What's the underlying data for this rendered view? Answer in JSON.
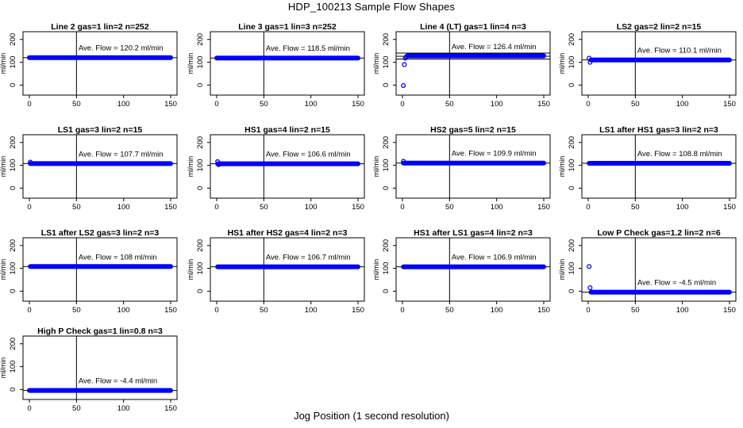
{
  "title": "HDP_100213  Sample Flow Shapes",
  "x_axis_label": "Jog Position (1 second resolution)",
  "y_axis_label": "ml/min",
  "marker_color": "#0000ff",
  "line_color": "#000000",
  "chart_data": [
    {
      "type": "scatter",
      "title": "Line 2 gas=1 lin=2 n=252",
      "xlim": [
        0,
        150
      ],
      "ylim": [
        -30,
        220
      ],
      "yticks": [
        0,
        100,
        200
      ],
      "xticks": [
        0,
        50,
        100,
        150
      ],
      "ave_label": "Ave. Flow =  120.2  ml/min",
      "ave": 120.2,
      "reference_band": [],
      "vline_x": 50,
      "x": [
        0,
        150
      ],
      "y": [
        120.2,
        120.2
      ],
      "extra_points": []
    },
    {
      "type": "scatter",
      "title": "Line 3 gas=1 lin=3 n=252",
      "xlim": [
        0,
        150
      ],
      "ylim": [
        -30,
        220
      ],
      "yticks": [
        0,
        100,
        200
      ],
      "xticks": [
        0,
        50,
        100,
        150
      ],
      "ave_label": "Ave. Flow =  118.5  ml/min",
      "ave": 118.5,
      "reference_band": [],
      "vline_x": 50,
      "x": [
        0,
        150
      ],
      "y": [
        118.5,
        118.5
      ],
      "extra_points": []
    },
    {
      "type": "scatter",
      "title": "Line 4 (LT) gas=1 lin=4 n=3",
      "xlim": [
        0,
        150
      ],
      "ylim": [
        -30,
        220
      ],
      "yticks": [
        0,
        100,
        200
      ],
      "xticks": [
        0,
        50,
        100,
        150
      ],
      "ave_label": "Ave. Flow =  126.4  ml/min",
      "ave": 126.4,
      "reference_band": [
        114,
        140
      ],
      "vline_x": 50,
      "x": [
        5,
        150
      ],
      "y": [
        128,
        128
      ],
      "extra_points": [
        [
          1,
          -2
        ],
        [
          2,
          90
        ],
        [
          3,
          118
        ],
        [
          4,
          124
        ]
      ]
    },
    {
      "type": "scatter",
      "title": "LS2 gas=2 lin=2 n=15",
      "xlim": [
        0,
        150
      ],
      "ylim": [
        -30,
        220
      ],
      "yticks": [
        0,
        100,
        200
      ],
      "xticks": [
        0,
        50,
        100,
        150
      ],
      "ave_label": "Ave. Flow =  110.1  ml/min",
      "ave": 110.1,
      "reference_band": [],
      "vline_x": 50,
      "x": [
        3,
        150
      ],
      "y": [
        110.1,
        110.1
      ],
      "extra_points": [
        [
          1,
          118
        ],
        [
          2,
          100
        ]
      ]
    },
    {
      "type": "scatter",
      "title": "LS1 gas=3 lin=2 n=15",
      "xlim": [
        0,
        150
      ],
      "ylim": [
        -30,
        220
      ],
      "yticks": [
        0,
        100,
        200
      ],
      "xticks": [
        0,
        50,
        100,
        150
      ],
      "ave_label": "Ave. Flow =  107.7  ml/min",
      "ave": 107.7,
      "reference_band": [],
      "vline_x": 50,
      "x": [
        1,
        150
      ],
      "y": [
        107.7,
        107.7
      ],
      "extra_points": [
        [
          1,
          114
        ]
      ]
    },
    {
      "type": "scatter",
      "title": "HS1 gas=4 lin=2 n=15",
      "xlim": [
        0,
        150
      ],
      "ylim": [
        -30,
        220
      ],
      "yticks": [
        0,
        100,
        200
      ],
      "xticks": [
        0,
        50,
        100,
        150
      ],
      "ave_label": "Ave. Flow =  106.6  ml/min",
      "ave": 106.6,
      "reference_band": [],
      "vline_x": 50,
      "x": [
        1,
        150
      ],
      "y": [
        106.6,
        106.6
      ],
      "extra_points": [
        [
          1,
          116
        ],
        [
          2,
          103
        ]
      ]
    },
    {
      "type": "scatter",
      "title": "HS2 gas=5 lin=2 n=15",
      "xlim": [
        0,
        150
      ],
      "ylim": [
        -30,
        220
      ],
      "yticks": [
        0,
        100,
        200
      ],
      "xticks": [
        0,
        50,
        100,
        150
      ],
      "ave_label": "Ave. Flow =  109.9  ml/min",
      "ave": 109.9,
      "reference_band": [],
      "vline_x": 50,
      "x": [
        1,
        150
      ],
      "y": [
        109.9,
        109.9
      ],
      "extra_points": [
        [
          1,
          118
        ]
      ]
    },
    {
      "type": "scatter",
      "title": "LS1 after HS1 gas=3 lin=2 n=3",
      "xlim": [
        0,
        150
      ],
      "ylim": [
        -30,
        220
      ],
      "yticks": [
        0,
        100,
        200
      ],
      "xticks": [
        0,
        50,
        100,
        150
      ],
      "ave_label": "Ave. Flow =  108.8  ml/min",
      "ave": 108.8,
      "reference_band": [],
      "vline_x": 50,
      "x": [
        1,
        150
      ],
      "y": [
        108.8,
        108.8
      ],
      "extra_points": []
    },
    {
      "type": "scatter",
      "title": "LS1 after LS2 gas=3 lin=2 n=3",
      "xlim": [
        0,
        150
      ],
      "ylim": [
        -30,
        220
      ],
      "yticks": [
        0,
        100,
        200
      ],
      "xticks": [
        0,
        50,
        100,
        150
      ],
      "ave_label": "Ave. Flow =  108   ml/min",
      "ave": 108,
      "reference_band": [],
      "vline_x": 50,
      "x": [
        1,
        150
      ],
      "y": [
        108,
        108
      ],
      "extra_points": []
    },
    {
      "type": "scatter",
      "title": "HS1 after HS2 gas=4 lin=2 n=3",
      "xlim": [
        0,
        150
      ],
      "ylim": [
        -30,
        220
      ],
      "yticks": [
        0,
        100,
        200
      ],
      "xticks": [
        0,
        50,
        100,
        150
      ],
      "ave_label": "Ave. Flow =  106.7  ml/min",
      "ave": 106.7,
      "reference_band": [],
      "vline_x": 50,
      "x": [
        1,
        150
      ],
      "y": [
        106.7,
        106.7
      ],
      "extra_points": []
    },
    {
      "type": "scatter",
      "title": "HS1 after LS1 gas=4 lin=2 n=3",
      "xlim": [
        0,
        150
      ],
      "ylim": [
        -30,
        220
      ],
      "yticks": [
        0,
        100,
        200
      ],
      "xticks": [
        0,
        50,
        100,
        150
      ],
      "ave_label": "Ave. Flow =  106.9  ml/min",
      "ave": 106.9,
      "reference_band": [],
      "vline_x": 50,
      "x": [
        1,
        150
      ],
      "y": [
        106.9,
        106.9
      ],
      "extra_points": []
    },
    {
      "type": "scatter",
      "title": "Low P Check gas=1.2 lin=2 n=6",
      "xlim": [
        0,
        150
      ],
      "ylim": [
        -30,
        220
      ],
      "yticks": [
        0,
        100,
        200
      ],
      "xticks": [
        0,
        50,
        100,
        150
      ],
      "ave_label": "Ave. Flow =  -4.5  ml/min",
      "ave": -4.5,
      "reference_band": [],
      "vline_x": 50,
      "x": [
        3,
        150
      ],
      "y": [
        -4.5,
        -4.5
      ],
      "extra_points": [
        [
          1,
          108
        ],
        [
          2,
          15
        ]
      ]
    },
    {
      "type": "scatter",
      "title": "High P Check gas=1 lin=0.8 n=3",
      "xlim": [
        0,
        150
      ],
      "ylim": [
        -30,
        220
      ],
      "yticks": [
        0,
        100,
        200
      ],
      "xticks": [
        0,
        50,
        100,
        150
      ],
      "ave_label": "Ave. Flow =  -4.4  ml/min",
      "ave": -4.4,
      "reference_band": [],
      "vline_x": 50,
      "x": [
        0,
        150
      ],
      "y": [
        -4.4,
        -4.4
      ],
      "extra_points": []
    }
  ]
}
